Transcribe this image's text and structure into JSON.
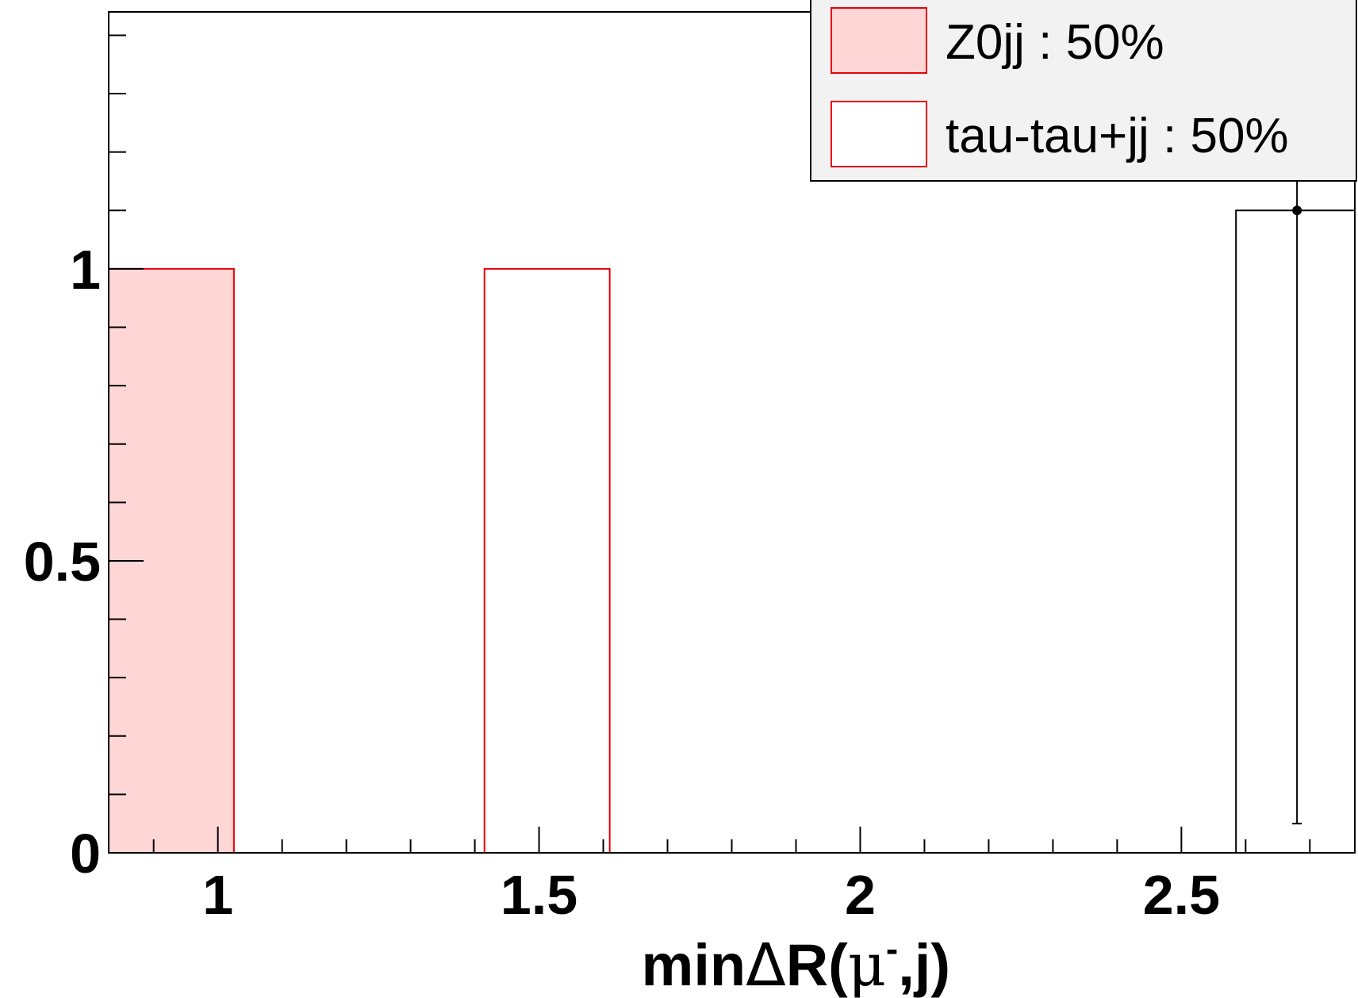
{
  "chart_data": {
    "type": "bar",
    "xlabel": {
      "pre": "min",
      "symbol": "Δ",
      "mid": "R(",
      "mu": "μ",
      "sup": "-",
      "post": ",j)"
    },
    "ylabel": "",
    "xlim": [
      0.83,
      2.77
    ],
    "ylim": [
      0,
      1.44
    ],
    "bin_width": 0.195,
    "x_ticks": [
      {
        "value": 1,
        "label": "1"
      },
      {
        "value": 1.5,
        "label": "1.5"
      },
      {
        "value": 2,
        "label": "2"
      },
      {
        "value": 2.5,
        "label": "2.5"
      }
    ],
    "y_ticks": [
      {
        "value": 0,
        "label": "0"
      },
      {
        "value": 0.5,
        "label": "0.5"
      },
      {
        "value": 1,
        "label": "1"
      }
    ],
    "series": [
      {
        "name": "Z0jj : 50%",
        "style": "filled",
        "fill": "#ffd6d6",
        "stroke": "#e8000b",
        "bars": [
          {
            "x0": 0.83,
            "x1": 1.025,
            "y": 1
          }
        ]
      },
      {
        "name": "tau-tau+jj : 50%",
        "style": "outline",
        "fill": "#ffffff",
        "stroke": "#e8000b",
        "bars": [
          {
            "x0": 1.415,
            "x1": 1.61,
            "y": 1
          }
        ]
      }
    ],
    "data_points": [
      {
        "x": 2.68,
        "y": 1.1,
        "y_err_low": 1.05,
        "y_err_high": 0.34,
        "x_err": 0.0975
      }
    ],
    "data_outline": {
      "x0": 2.585,
      "x1": 2.77,
      "y": 1.1
    },
    "legend_position": "top-right",
    "colors": {
      "frame": "#000000",
      "legend_bg": "#f2f2f2",
      "red": "#e8000b"
    }
  }
}
